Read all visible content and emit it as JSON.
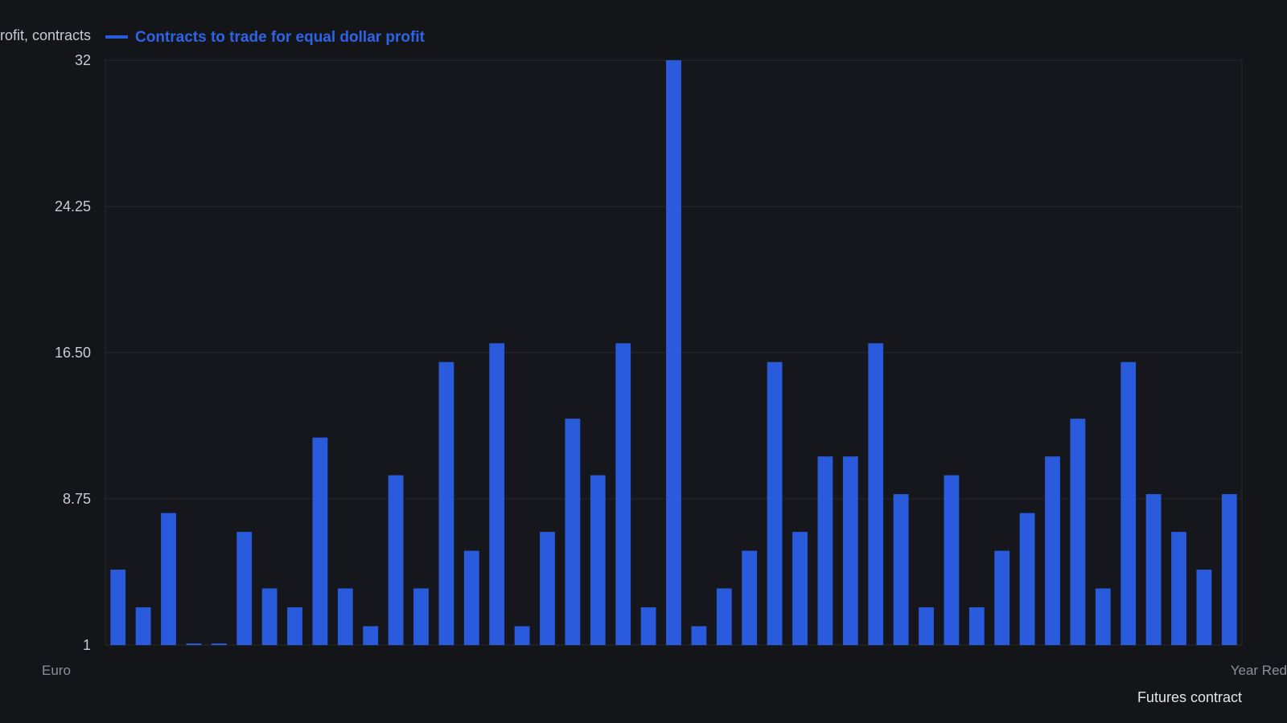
{
  "chart_data": {
    "type": "bar",
    "ylabel": "Contracts to trade for equal dollar profit, contracts",
    "xlabel": "Futures contract",
    "ylim": [
      1,
      32
    ],
    "yticks": [
      "1",
      "8.75",
      "16.50",
      "24.25",
      "32"
    ],
    "grid": true,
    "legend_position": "top-left",
    "series": [
      {
        "name": "Contracts to trade for equal dollar profit",
        "color": "#2a5bdc",
        "values": [
          5,
          3,
          8,
          1,
          1,
          7,
          4,
          3,
          12,
          4,
          2,
          10,
          4,
          16,
          6,
          17,
          2,
          7,
          13,
          10,
          17,
          3,
          32,
          2,
          4,
          6,
          16,
          7,
          11,
          11,
          17,
          9,
          3,
          10,
          3,
          6,
          8,
          11,
          13,
          4,
          16,
          9,
          7,
          5,
          9
        ]
      }
    ],
    "first_category_label": "Euro",
    "last_category_label": "Year Red"
  },
  "colors": {
    "background": "#131519",
    "plot_background": "#15171c",
    "grid": "#262a31",
    "bar": "#2a5bdc",
    "text": "#c9ccd2",
    "legend_text": "#2f63e6"
  }
}
